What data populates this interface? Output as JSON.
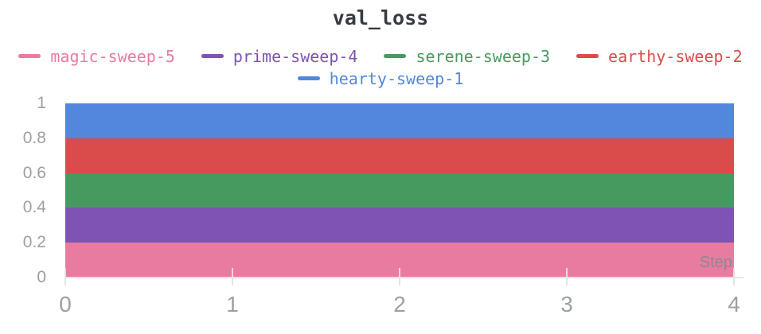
{
  "panel": {
    "title": "val_loss",
    "title_color": "#363b42",
    "background": "#ffffff"
  },
  "legend": {
    "rows": [
      [
        {
          "label": "magic-sweep-5",
          "color": "#E87B9F"
        },
        {
          "label": "prime-sweep-4",
          "color": "#7D54B2"
        },
        {
          "label": "serene-sweep-3",
          "color": "#479A5F"
        },
        {
          "label": "earthy-sweep-2",
          "color": "#DA4C4C"
        }
      ],
      [
        {
          "label": "hearty-sweep-1",
          "color": "#5387DD"
        }
      ]
    ]
  },
  "axes": {
    "x_label": "Step",
    "x_ticks": [
      "0",
      "1",
      "2",
      "3",
      "4"
    ],
    "y_ticks": [
      "0",
      "0.2",
      "0.4",
      "0.6",
      "0.8",
      "1"
    ],
    "tick_label_color": "#9ba0a6"
  },
  "chart_data": {
    "type": "area",
    "title": "val_loss",
    "xlabel": "Step",
    "ylabel": "",
    "x": [
      0,
      1,
      2,
      3,
      4
    ],
    "xlim": [
      0,
      4
    ],
    "ylim": [
      0,
      1
    ],
    "grid": false,
    "legend_position": "top",
    "series": [
      {
        "name": "hearty-sweep-1",
        "color": "#5387DD",
        "values": [
          1.0,
          1.0,
          1.0,
          1.0,
          1.0
        ]
      },
      {
        "name": "earthy-sweep-2",
        "color": "#DA4C4C",
        "values": [
          0.8,
          0.8,
          0.8,
          0.8,
          0.8
        ]
      },
      {
        "name": "serene-sweep-3",
        "color": "#479A5F",
        "values": [
          0.6,
          0.6,
          0.6,
          0.6,
          0.6
        ]
      },
      {
        "name": "prime-sweep-4",
        "color": "#7D54B2",
        "values": [
          0.4,
          0.4,
          0.4,
          0.4,
          0.4
        ]
      },
      {
        "name": "magic-sweep-5",
        "color": "#E87B9F",
        "values": [
          0.2,
          0.2,
          0.2,
          0.2,
          0.2
        ]
      }
    ],
    "render_hint": "constant-value area fills drawn largest-first, appearing as five equal horizontal bands of 0.2 each"
  }
}
